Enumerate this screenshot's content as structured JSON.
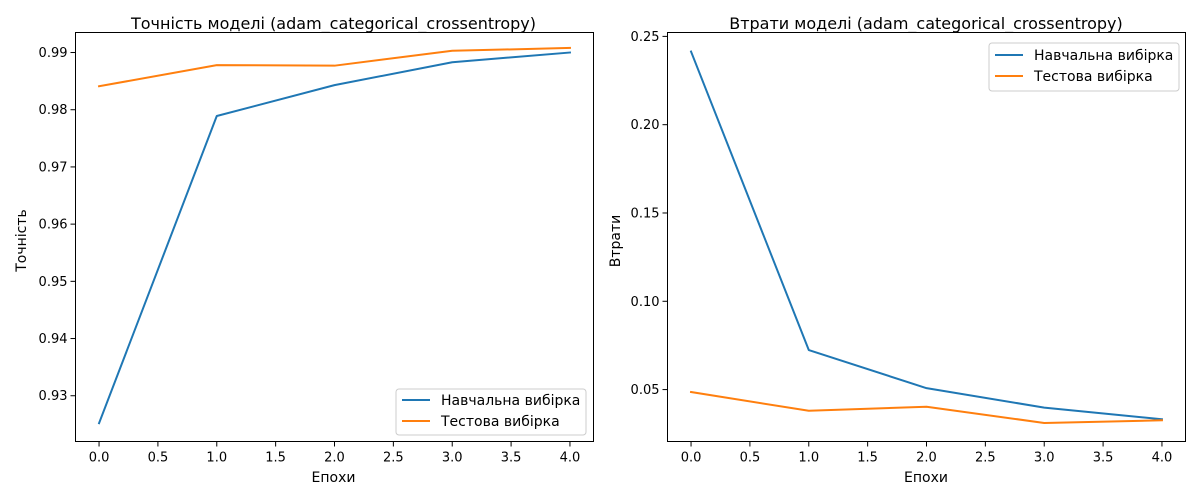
{
  "colors": {
    "train": "#1f77b4",
    "test": "#ff7f0e"
  },
  "chart_data": [
    {
      "type": "line",
      "title": "Точність моделі (adam_categorical_crossentropy)",
      "xlabel": "Епохи",
      "ylabel": "Точність",
      "x": [
        0,
        1,
        2,
        3,
        4
      ],
      "xlim": [
        -0.2,
        4.2
      ],
      "ylim": [
        0.922,
        0.9935
      ],
      "xticks": [
        "0.0",
        "0.5",
        "1.0",
        "1.5",
        "2.0",
        "2.5",
        "3.0",
        "3.5",
        "4.0"
      ],
      "yticks": [
        "0.93",
        "0.94",
        "0.95",
        "0.96",
        "0.97",
        "0.98",
        "0.99"
      ],
      "legend_position": "lower-right",
      "grid": false,
      "series": [
        {
          "name": "Навчальна вибірка",
          "color": "#1f77b4",
          "values": [
            0.9252,
            0.9789,
            0.9843,
            0.9883,
            0.99
          ]
        },
        {
          "name": "Тестова вибірка",
          "color": "#ff7f0e",
          "values": [
            0.9841,
            0.9878,
            0.9877,
            0.9903,
            0.9908
          ]
        }
      ]
    },
    {
      "type": "line",
      "title": "Втрати моделі (adam_categorical_crossentropy)",
      "xlabel": "Епохи",
      "ylabel": "Втрати",
      "x": [
        0,
        1,
        2,
        3,
        4
      ],
      "xlim": [
        -0.2,
        4.2
      ],
      "ylim": [
        0.0206,
        0.2522
      ],
      "xticks": [
        "0.0",
        "0.5",
        "1.0",
        "1.5",
        "2.0",
        "2.5",
        "3.0",
        "3.5",
        "4.0"
      ],
      "yticks": [
        "0.05",
        "0.10",
        "0.15",
        "0.20",
        "0.25"
      ],
      "legend_position": "upper-right",
      "grid": false,
      "series": [
        {
          "name": "Навчальна вибірка",
          "color": "#1f77b4",
          "values": [
            0.2414,
            0.0724,
            0.0508,
            0.0398,
            0.0332
          ]
        },
        {
          "name": "Тестова вибірка",
          "color": "#ff7f0e",
          "values": [
            0.0486,
            0.038,
            0.0403,
            0.0311,
            0.0326
          ]
        }
      ]
    }
  ]
}
